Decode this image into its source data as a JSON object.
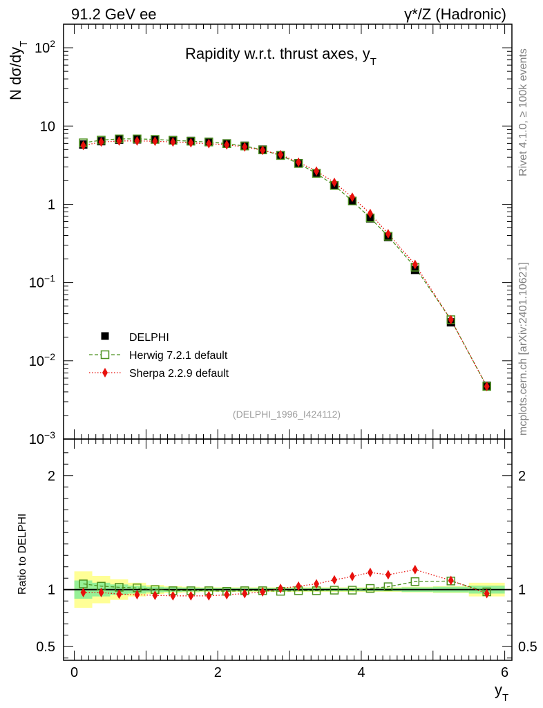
{
  "header": {
    "left": "91.2 GeV ee",
    "right": "γ*/Z (Hadronic)"
  },
  "side": {
    "rivet": "Rivet 4.1.0, ≥ 100k events",
    "mcplots": "mcplots.cern.ch [arXiv:2401.10621]"
  },
  "chart_data": [
    {
      "type": "scatter",
      "panel": "main",
      "title": "Rapidity w.r.t. thrust axes, y",
      "title_sub": "T",
      "ylabel_prefix": "N  dσ/dy",
      "ylabel_sub": "T",
      "yscale": "log",
      "ylim": [
        0.001,
        200
      ],
      "xlim": [
        -0.15,
        6.1
      ],
      "watermark": "(DELPHI_1996_I424112)",
      "y_ticks": [
        {
          "value": 100,
          "base": "10",
          "exp": "2"
        },
        {
          "value": 10,
          "base": "10",
          "exp": ""
        },
        {
          "value": 1,
          "base": "1",
          "exp": ""
        },
        {
          "value": 0.1,
          "base": "10",
          "exp": "−1"
        },
        {
          "value": 0.01,
          "base": "10",
          "exp": "−2"
        },
        {
          "value": 0.001,
          "base": "10",
          "exp": "−3"
        }
      ],
      "x": [
        0.125,
        0.375,
        0.625,
        0.875,
        1.125,
        1.375,
        1.625,
        1.875,
        2.125,
        2.375,
        2.625,
        2.875,
        3.125,
        3.375,
        3.625,
        3.875,
        4.125,
        4.375,
        4.75,
        5.25,
        5.75
      ],
      "series": [
        {
          "name": "DELPHI",
          "marker": "square-filled",
          "color": "#000000",
          "values": [
            5.8,
            6.4,
            6.7,
            6.75,
            6.75,
            6.6,
            6.45,
            6.3,
            6.0,
            5.6,
            5.0,
            4.25,
            3.35,
            2.5,
            1.75,
            1.1,
            0.66,
            0.38,
            0.145,
            0.031,
            0.0048
          ]
        },
        {
          "name": "Herwig 7.2.1 default",
          "marker": "square-open",
          "color": "#4d9221",
          "values": [
            6.1,
            6.6,
            6.85,
            6.85,
            6.75,
            6.55,
            6.4,
            6.25,
            5.95,
            5.55,
            4.95,
            4.2,
            3.32,
            2.48,
            1.74,
            1.1,
            0.67,
            0.39,
            0.157,
            0.0335,
            0.0047
          ]
        },
        {
          "name": "Sherpa 2.2.9 default",
          "marker": "diamond-filled",
          "color": "#e8100c",
          "values": [
            5.65,
            6.25,
            6.45,
            6.45,
            6.4,
            6.25,
            6.1,
            5.95,
            5.75,
            5.4,
            4.9,
            4.3,
            3.45,
            2.65,
            1.9,
            1.23,
            0.76,
            0.42,
            0.17,
            0.0335,
            0.0047
          ]
        }
      ]
    },
    {
      "type": "scatter",
      "panel": "ratio",
      "ylabel": "Ratio to DELPHI",
      "ylim": [
        0.38,
        2.32
      ],
      "xlim": [
        -0.15,
        6.1
      ],
      "xlabel": "y",
      "xlabel_sub": "T",
      "x_ticks": [
        "0",
        "2",
        "4",
        "6"
      ],
      "y_ticks": [
        "0.5",
        "1",
        "2"
      ],
      "x": [
        0.125,
        0.375,
        0.625,
        0.875,
        1.125,
        1.375,
        1.625,
        1.875,
        2.125,
        2.375,
        2.625,
        2.875,
        3.125,
        3.375,
        3.625,
        3.875,
        4.125,
        4.375,
        4.75,
        5.25,
        5.75
      ],
      "band_inner": [
        0.08,
        0.06,
        0.045,
        0.035,
        0.025,
        0.02,
        0.018,
        0.016,
        0.015,
        0.015,
        0.015,
        0.015,
        0.015,
        0.015,
        0.015,
        0.015,
        0.015,
        0.015,
        0.02,
        0.025,
        0.035
      ],
      "band_outer": [
        0.16,
        0.12,
        0.09,
        0.06,
        0.04,
        0.03,
        0.025,
        0.02,
        0.02,
        0.02,
        0.02,
        0.02,
        0.02,
        0.02,
        0.02,
        0.02,
        0.02,
        0.02,
        0.025,
        0.03,
        0.06
      ],
      "series": [
        {
          "name": "Herwig 7.2.1 default",
          "color": "#4d9221",
          "values": [
            1.05,
            1.03,
            1.02,
            1.015,
            1.0,
            0.99,
            0.99,
            0.99,
            0.985,
            0.99,
            0.99,
            0.985,
            0.99,
            0.99,
            0.995,
            0.995,
            1.01,
            1.025,
            1.07,
            1.075,
            0.98
          ]
        },
        {
          "name": "Sherpa 2.2.9 default",
          "color": "#e8100c",
          "values": [
            0.975,
            0.975,
            0.96,
            0.955,
            0.95,
            0.945,
            0.945,
            0.945,
            0.955,
            0.965,
            0.98,
            1.01,
            1.03,
            1.05,
            1.085,
            1.115,
            1.15,
            1.13,
            1.175,
            1.08,
            0.965
          ]
        }
      ]
    }
  ]
}
